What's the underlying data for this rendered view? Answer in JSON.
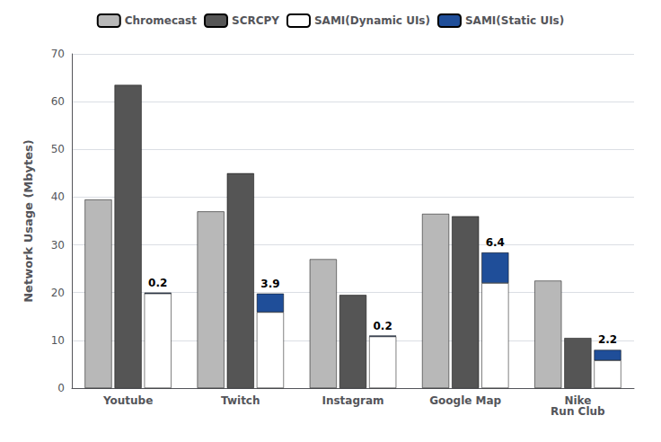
{
  "chart_data": {
    "type": "bar",
    "categories": [
      "Youtube",
      "Twitch",
      "Instagram",
      "Google Map",
      "Nike\nRun Club"
    ],
    "ylabel": "Network Usage (Mbytes)",
    "ylim": [
      0,
      70
    ],
    "yticks": [
      0,
      10,
      20,
      30,
      40,
      50,
      60,
      70
    ],
    "grid": true,
    "legend": "top",
    "series": [
      {
        "name": "Chromecast",
        "color": "#b8b8b8",
        "values": [
          39.5,
          37.0,
          27.0,
          36.5,
          22.5
        ]
      },
      {
        "name": "SCRCPY",
        "color": "#555555",
        "values": [
          63.5,
          45.0,
          19.5,
          36.0,
          10.5
        ]
      },
      {
        "name": "SAMI(Dynamic UIs)",
        "color": "#ffffff",
        "stacked": true,
        "values": [
          19.8,
          15.9,
          10.8,
          22.0,
          5.8
        ]
      },
      {
        "name": "SAMI(Static UIs)",
        "color": "#1f4e99",
        "stacked": true,
        "data_labels": true,
        "values": [
          0.2,
          3.9,
          0.2,
          6.4,
          2.2
        ]
      }
    ]
  }
}
